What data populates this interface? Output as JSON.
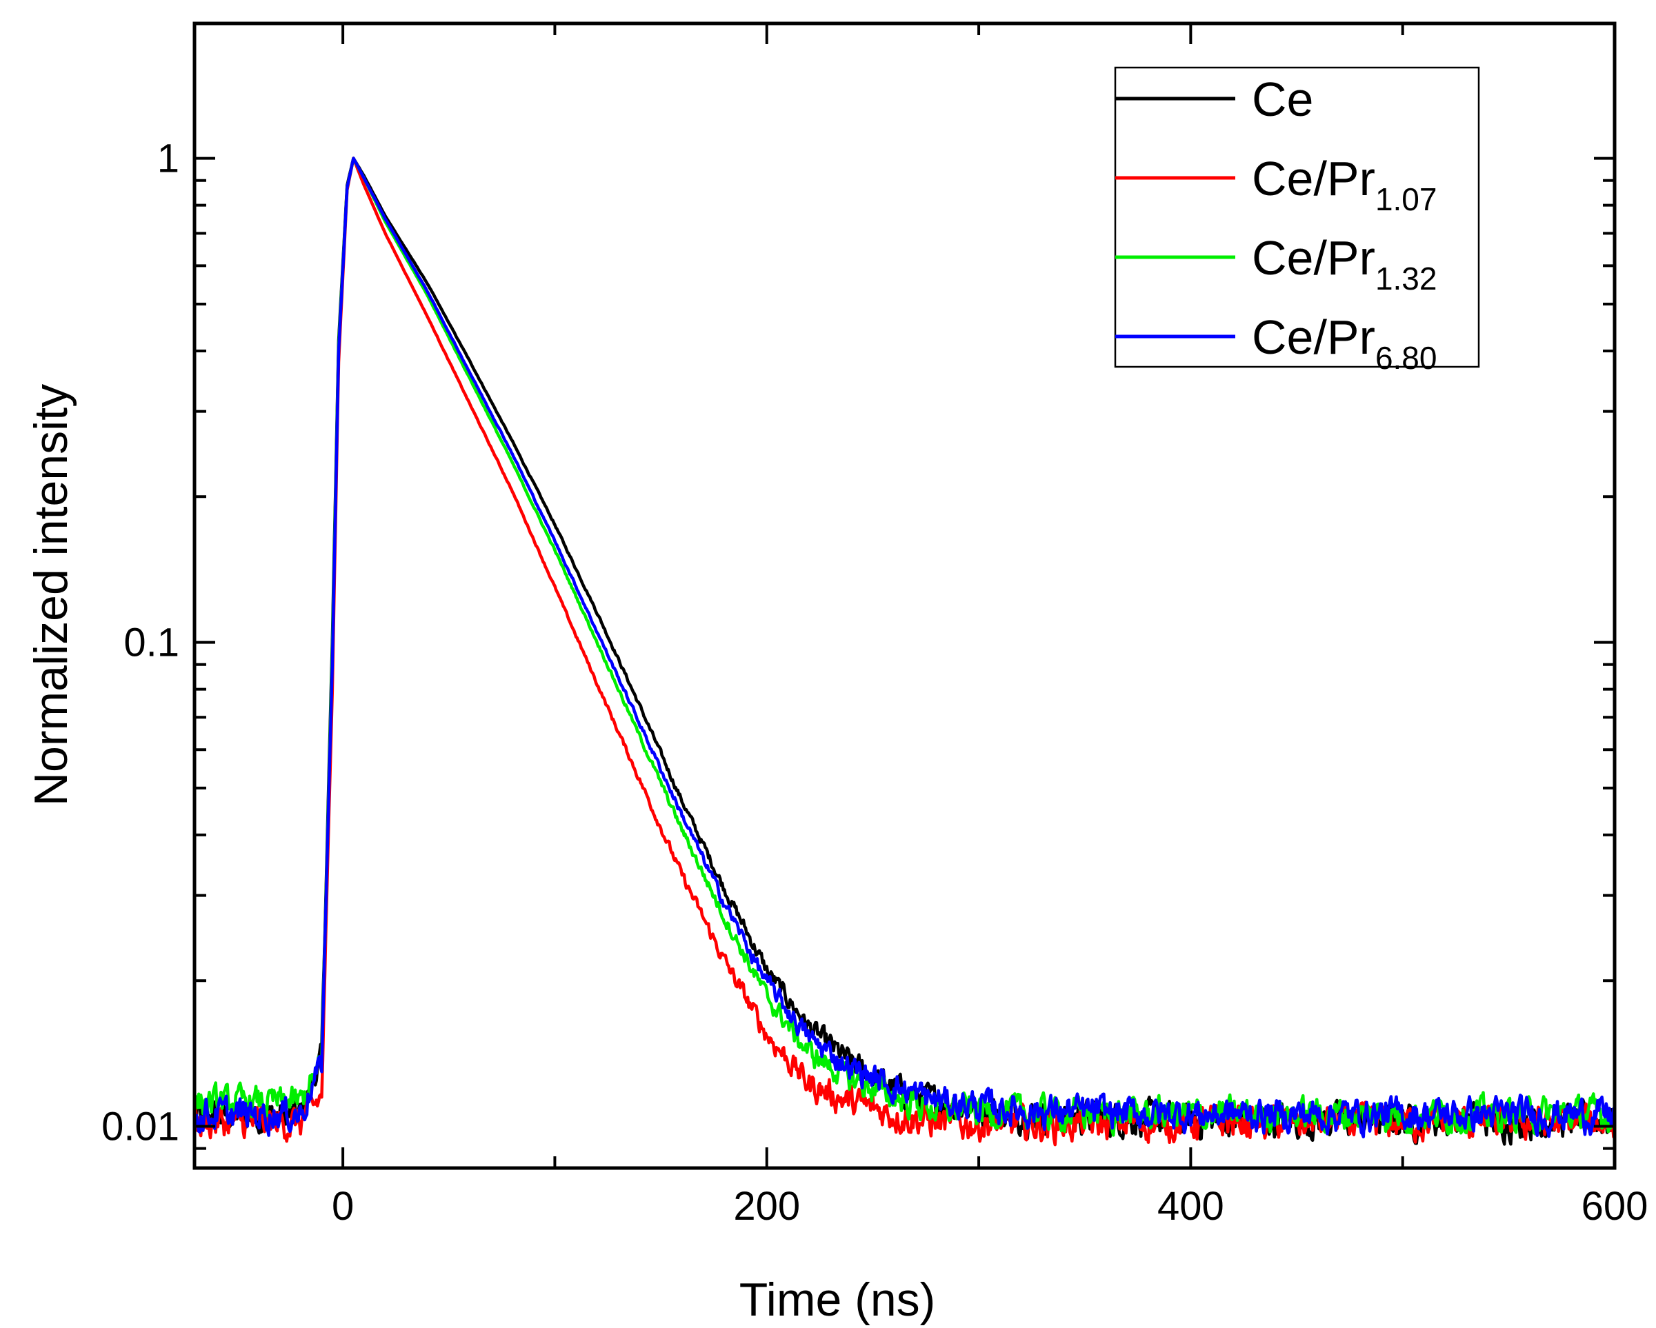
{
  "chart_data": {
    "type": "line",
    "title": "",
    "xlabel": "Time (ns)",
    "ylabel": "Normalized intensity",
    "xlim": [
      -70,
      600
    ],
    "ylim": [
      0.0082,
      1.9
    ],
    "yscale": "log",
    "x_ticks": [
      0,
      200,
      400,
      600
    ],
    "x_tick_labels": [
      "0",
      "200",
      "400",
      "600"
    ],
    "y_ticks": [
      0.01,
      0.1,
      1
    ],
    "y_tick_labels": [
      "0.01",
      "0.1",
      "1"
    ],
    "grid": false,
    "legend_position": "top-right",
    "series": [
      {
        "name": "Ce",
        "legend_base": "Ce",
        "legend_sub": "",
        "color": "#000000",
        "points": [
          [
            -70,
            0.0105
          ],
          [
            -20,
            0.0105
          ],
          [
            -10,
            0.014
          ],
          [
            -5,
            0.1
          ],
          [
            -2,
            0.42
          ],
          [
            2,
            0.88
          ],
          [
            5,
            1.0
          ],
          [
            10,
            0.92
          ],
          [
            20,
            0.76
          ],
          [
            40,
            0.55
          ],
          [
            60,
            0.38
          ],
          [
            80,
            0.26
          ],
          [
            100,
            0.175
          ],
          [
            120,
            0.115
          ],
          [
            140,
            0.074
          ],
          [
            160,
            0.047
          ],
          [
            180,
            0.031
          ],
          [
            200,
            0.021
          ],
          [
            220,
            0.016
          ],
          [
            240,
            0.0135
          ],
          [
            260,
            0.012
          ],
          [
            280,
            0.0112
          ],
          [
            320,
            0.0106
          ],
          [
            400,
            0.0103
          ],
          [
            600,
            0.0103
          ]
        ]
      },
      {
        "name": "Ce/Pr1.07",
        "legend_base": "Ce/Pr",
        "legend_sub": "1.07",
        "color": "#ff0000",
        "points": [
          [
            -70,
            0.0102
          ],
          [
            -20,
            0.0102
          ],
          [
            -10,
            0.0115
          ],
          [
            -5,
            0.08
          ],
          [
            -2,
            0.38
          ],
          [
            2,
            0.86
          ],
          [
            5,
            1.0
          ],
          [
            10,
            0.88
          ],
          [
            20,
            0.7
          ],
          [
            40,
            0.47
          ],
          [
            60,
            0.31
          ],
          [
            80,
            0.205
          ],
          [
            100,
            0.13
          ],
          [
            120,
            0.082
          ],
          [
            140,
            0.052
          ],
          [
            160,
            0.033
          ],
          [
            180,
            0.022
          ],
          [
            200,
            0.0155
          ],
          [
            220,
            0.0122
          ],
          [
            240,
            0.0112
          ],
          [
            260,
            0.0106
          ],
          [
            280,
            0.0102
          ],
          [
            320,
            0.0101
          ],
          [
            400,
            0.0102
          ],
          [
            600,
            0.0102
          ]
        ]
      },
      {
        "name": "Ce/Pr1.32",
        "legend_base": "Ce/Pr",
        "legend_sub": "1.32",
        "color": "#00ee00",
        "points": [
          [
            -70,
            0.0112
          ],
          [
            -20,
            0.0112
          ],
          [
            -10,
            0.0135
          ],
          [
            -5,
            0.095
          ],
          [
            -2,
            0.41
          ],
          [
            2,
            0.87
          ],
          [
            5,
            1.0
          ],
          [
            10,
            0.91
          ],
          [
            20,
            0.74
          ],
          [
            40,
            0.52
          ],
          [
            60,
            0.35
          ],
          [
            80,
            0.235
          ],
          [
            100,
            0.155
          ],
          [
            120,
            0.1
          ],
          [
            140,
            0.064
          ],
          [
            160,
            0.041
          ],
          [
            180,
            0.027
          ],
          [
            200,
            0.0185
          ],
          [
            220,
            0.0142
          ],
          [
            240,
            0.0125
          ],
          [
            260,
            0.0115
          ],
          [
            280,
            0.0109
          ],
          [
            320,
            0.0107
          ],
          [
            400,
            0.0106
          ],
          [
            600,
            0.0106
          ]
        ]
      },
      {
        "name": "Ce/Pr6.80",
        "legend_base": "Ce/Pr",
        "legend_sub": "6.80",
        "color": "#0000ff",
        "points": [
          [
            -70,
            0.0106
          ],
          [
            -20,
            0.0106
          ],
          [
            -10,
            0.0135
          ],
          [
            -5,
            0.09
          ],
          [
            -2,
            0.4
          ],
          [
            2,
            0.87
          ],
          [
            5,
            1.0
          ],
          [
            10,
            0.91
          ],
          [
            20,
            0.75
          ],
          [
            40,
            0.53
          ],
          [
            60,
            0.36
          ],
          [
            80,
            0.245
          ],
          [
            100,
            0.162
          ],
          [
            120,
            0.105
          ],
          [
            140,
            0.068
          ],
          [
            160,
            0.044
          ],
          [
            180,
            0.029
          ],
          [
            200,
            0.0198
          ],
          [
            220,
            0.0152
          ],
          [
            240,
            0.0132
          ],
          [
            260,
            0.0121
          ],
          [
            280,
            0.0113
          ],
          [
            320,
            0.0108
          ],
          [
            400,
            0.0106
          ],
          [
            600,
            0.0106
          ]
        ]
      }
    ]
  }
}
